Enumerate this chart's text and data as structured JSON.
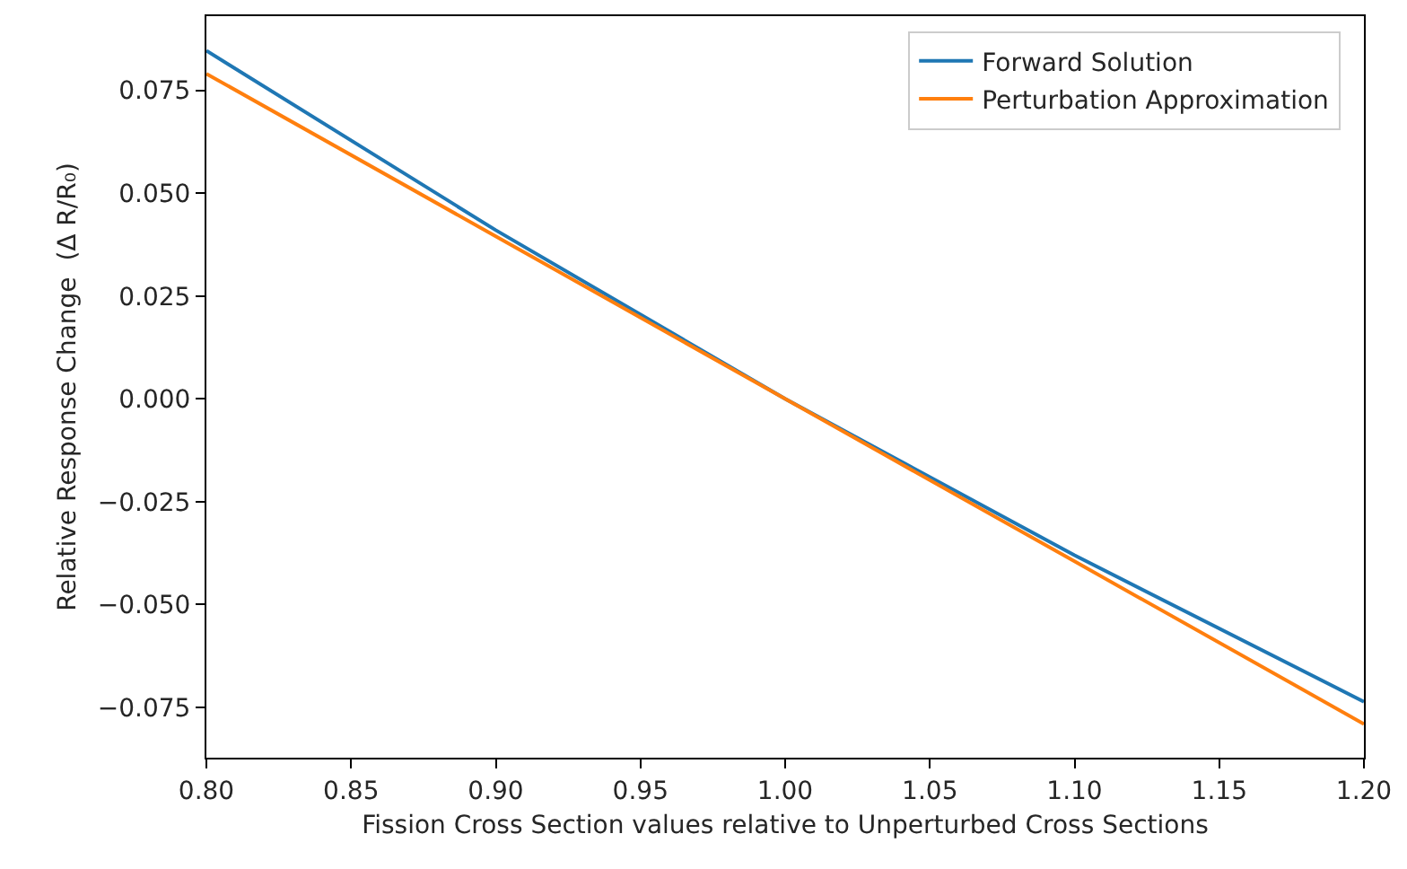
{
  "chart_data": {
    "type": "line",
    "xlabel": "Fission Cross Section values relative to Unperturbed Cross Sections",
    "ylabel": "Relative Response Change  (Δ R/R₀)",
    "x": [
      0.8,
      0.9,
      1.0,
      1.1,
      1.2
    ],
    "series": [
      {
        "name": "Forward Solution",
        "color": "#1f77b4",
        "values": [
          0.0846,
          0.041,
          0.0,
          -0.038,
          -0.0736
        ]
      },
      {
        "name": "Perturbation Approximation",
        "color": "#ff7f0e",
        "values": [
          0.079,
          0.0395,
          0.0,
          -0.0395,
          -0.079
        ]
      }
    ],
    "xlim": [
      0.8,
      1.2
    ],
    "xticks": [
      {
        "value": 0.8,
        "label": "0.80"
      },
      0.85,
      {
        "value": 0.9,
        "label": "0.90"
      },
      0.95,
      {
        "value": 1.0,
        "label": "1.00"
      },
      1.05,
      {
        "value": 1.1,
        "label": "1.10"
      },
      1.15,
      {
        "value": 1.2,
        "label": "1.20"
      }
    ],
    "ylim": [
      -0.0872,
      0.093
    ],
    "yticks": [
      {
        "value": -0.075,
        "label": "−0.075"
      },
      {
        "value": -0.05,
        "label": "−0.050"
      },
      {
        "value": -0.025,
        "label": "−0.025"
      },
      {
        "value": 0.0,
        "label": "0.000"
      },
      0.025,
      {
        "value": 0.05,
        "label": "0.050"
      },
      0.075
    ],
    "legend": "top right",
    "marker": "none",
    "line_style": "solid"
  }
}
